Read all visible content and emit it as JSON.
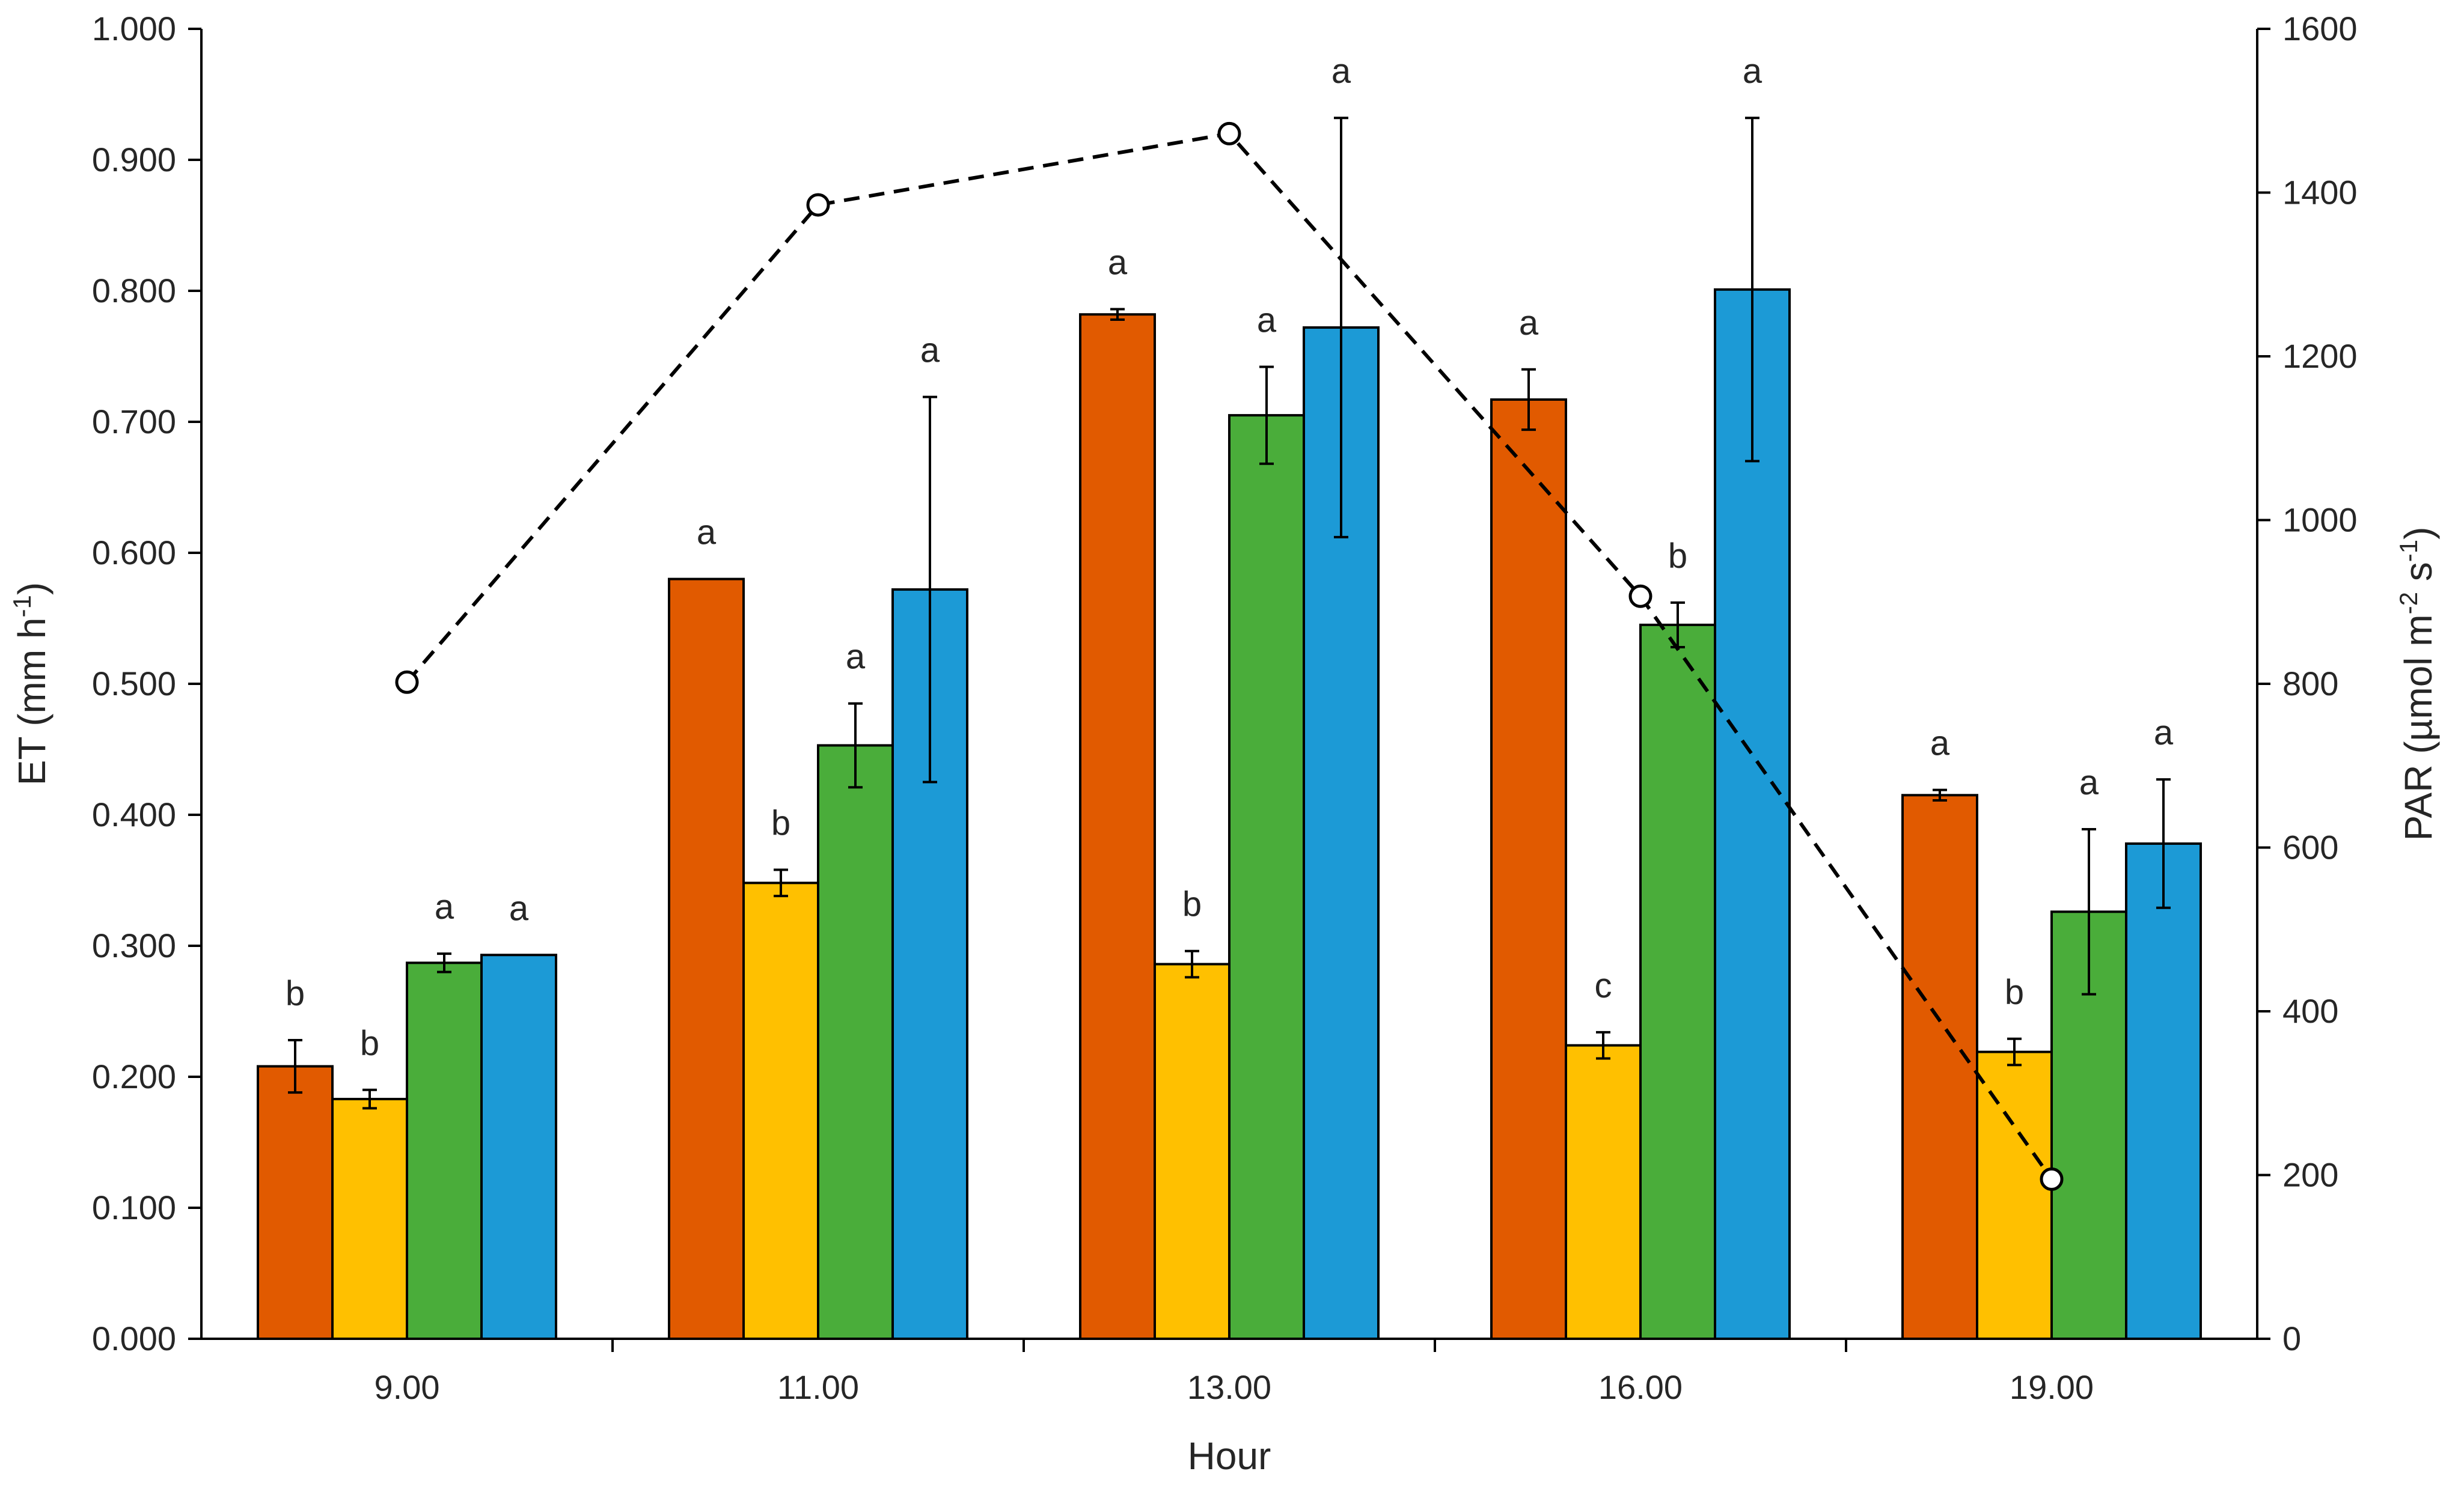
{
  "chart_data": {
    "type": "bar",
    "categories": [
      "9.00",
      "11.00",
      "13.00",
      "16.00",
      "19.00"
    ],
    "xlabel": "Hour",
    "ylabel": "ET (mm h-1)",
    "ylabel_parts": {
      "base": "ET (mm h",
      "sup": "-1",
      "close": ")"
    },
    "ylim": [
      0,
      1.0
    ],
    "yticks": [
      "0.000",
      "0.100",
      "0.200",
      "0.300",
      "0.400",
      "0.500",
      "0.600",
      "0.700",
      "0.800",
      "0.900",
      "1.000"
    ],
    "y2label": "PAR (µmol m-2 s-1)",
    "y2label_parts": {
      "base": "PAR (µmol m",
      "sup1": "-2",
      "mid": " s",
      "sup2": "-1",
      "close": ")"
    },
    "y2lim": [
      0,
      1600
    ],
    "y2ticks": [
      "0",
      "200",
      "400",
      "600",
      "800",
      "1000",
      "1200",
      "1400",
      "1600"
    ],
    "grid": false,
    "legend": "none",
    "series": [
      {
        "name": "series-1",
        "color": "#e15a00",
        "values": [
          0.208,
          0.58,
          0.782,
          0.717,
          0.415
        ],
        "errors": [
          0.02,
          0.0,
          0.004,
          0.023,
          0.004
        ],
        "letters": [
          "b",
          "a",
          "a",
          "a",
          "a"
        ]
      },
      {
        "name": "series-2",
        "color": "#ffc000",
        "values": [
          0.183,
          0.348,
          0.286,
          0.224,
          0.219
        ],
        "errors": [
          0.007,
          0.01,
          0.01,
          0.01,
          0.01
        ],
        "letters": [
          "b",
          "b",
          "b",
          "c",
          "b"
        ]
      },
      {
        "name": "series-3",
        "color": "#4aad3a",
        "values": [
          0.287,
          0.453,
          0.705,
          0.545,
          0.326
        ],
        "errors": [
          0.007,
          0.032,
          0.037,
          0.017,
          0.063
        ],
        "letters": [
          "a",
          "a",
          "a",
          "b",
          "a"
        ]
      },
      {
        "name": "series-4",
        "color": "#1c9ad6",
        "values": [
          0.293,
          0.572,
          0.772,
          0.801,
          0.378
        ],
        "errors": [
          0.0,
          0.147,
          0.16,
          0.131,
          0.049
        ],
        "letters": [
          "a",
          "a",
          "a",
          "a",
          "a"
        ]
      }
    ],
    "par_line": {
      "name": "PAR",
      "style": "dashed",
      "values": [
        802,
        1385,
        1472,
        907,
        195
      ]
    }
  }
}
